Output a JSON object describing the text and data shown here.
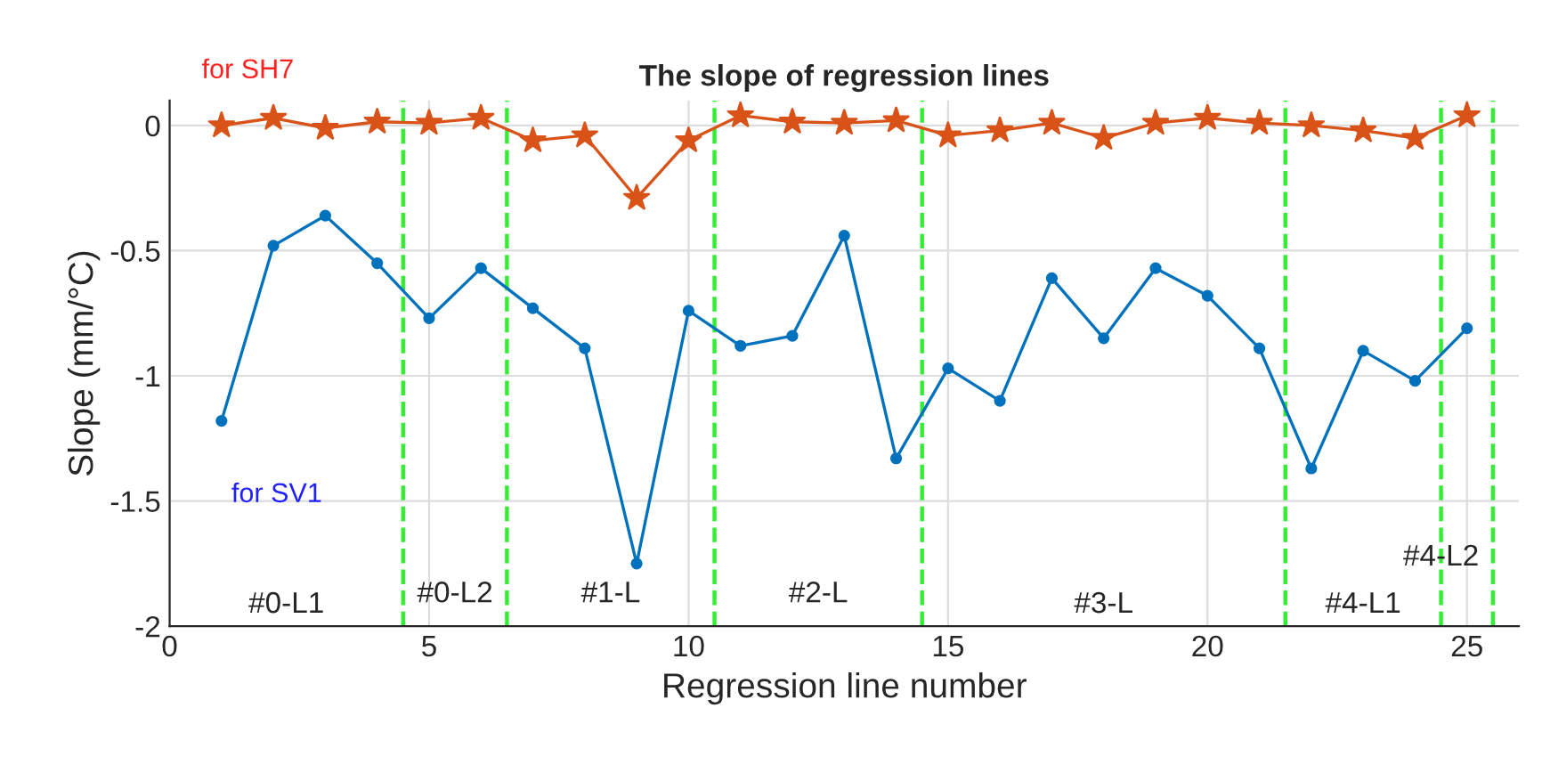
{
  "chart_data": {
    "type": "line",
    "title": "The slope of regression lines",
    "xlabel": "Regression line number",
    "ylabel": "Slope (mm/°C)",
    "x": [
      1,
      2,
      3,
      4,
      5,
      6,
      7,
      8,
      9,
      10,
      11,
      12,
      13,
      14,
      15,
      16,
      17,
      18,
      19,
      20,
      21,
      22,
      23,
      24,
      25
    ],
    "series": [
      {
        "name": "for SH7",
        "color": "#d95319",
        "marker": "star",
        "values": [
          0.0,
          0.03,
          -0.01,
          0.015,
          0.01,
          0.03,
          -0.06,
          -0.04,
          -0.29,
          -0.06,
          0.04,
          0.015,
          0.01,
          0.02,
          -0.04,
          -0.02,
          0.01,
          -0.05,
          0.01,
          0.03,
          0.01,
          0.0,
          -0.02,
          -0.05,
          0.04
        ]
      },
      {
        "name": "for SV1",
        "color": "#0072bd",
        "marker": "circle",
        "values": [
          -1.18,
          -0.48,
          -0.36,
          -0.55,
          -0.77,
          -0.57,
          -0.73,
          -0.89,
          -1.75,
          -0.74,
          -0.88,
          -0.84,
          -0.44,
          -1.33,
          -0.97,
          -1.1,
          -0.61,
          -0.85,
          -0.57,
          -0.68,
          -0.89,
          -1.37,
          -0.9,
          -1.02,
          -0.81
        ]
      }
    ],
    "ref_lines": [
      {
        "axis": "x",
        "value": 4.5,
        "label": null,
        "color": "#33ee33",
        "line_style": "dashed"
      },
      {
        "axis": "x",
        "value": 6.5,
        "label": null,
        "color": "#33ee33",
        "line_style": "dashed"
      },
      {
        "axis": "x",
        "value": 10.5,
        "label": null,
        "color": "#33ee33",
        "line_style": "dashed"
      },
      {
        "axis": "x",
        "value": 14.5,
        "label": null,
        "color": "#33ee33",
        "line_style": "dashed"
      },
      {
        "axis": "x",
        "value": 21.5,
        "label": null,
        "color": "#33ee33",
        "line_style": "dashed"
      },
      {
        "axis": "x",
        "value": 24.5,
        "label": null,
        "color": "#33ee33",
        "line_style": "dashed"
      },
      {
        "axis": "x",
        "value": 25.5,
        "label": null,
        "color": "#33ee33",
        "line_style": "dashed"
      }
    ],
    "annotations": [
      "#0-L1",
      "#0-L2",
      "#1-L",
      "#2-L",
      "#3-L",
      "#4-L1",
      "#4-L2"
    ],
    "xlim": [
      0,
      26
    ],
    "ylim": [
      -2,
      0.1
    ],
    "xticks": [
      0,
      5,
      10,
      15,
      20,
      25
    ],
    "yticks": [
      -2,
      -1.5,
      -1,
      -0.5,
      0
    ],
    "grid": true,
    "legend": false
  }
}
